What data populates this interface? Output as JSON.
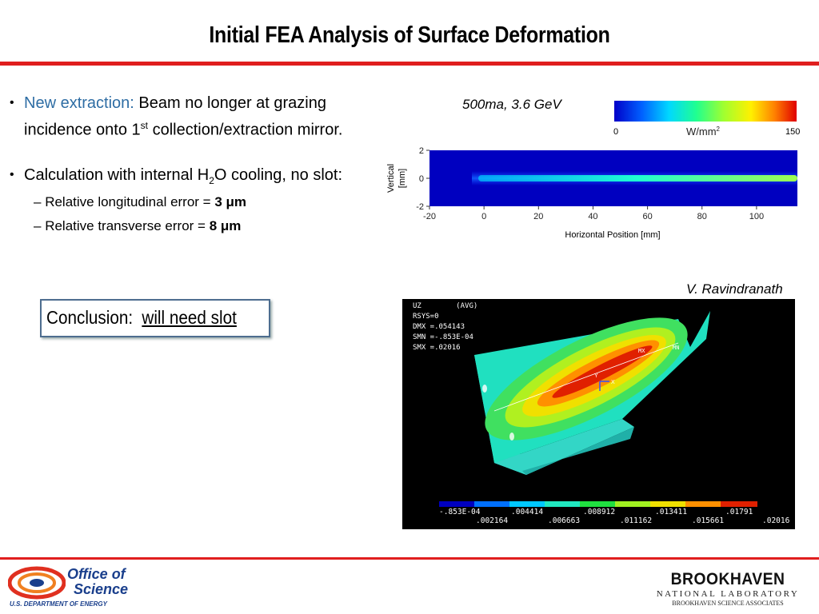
{
  "slide": {
    "title": "Initial FEA Analysis of Surface Deformation",
    "bullet1": {
      "prefix": "New extraction:",
      "text_a": "Beam no longer at grazing",
      "text_b": "incidence onto 1",
      "sup": "st",
      "text_c": "collection/extraction mirror."
    },
    "bullet2": {
      "text_a": "Calculation with internal H",
      "sub": "2",
      "text_b": "O cooling, no slot:",
      "sub1_label": "Relative longitudinal error = ",
      "sub1_value": "3 μm",
      "sub2_label": "Relative transverse error  = ",
      "sub2_value": "8 μm"
    },
    "conclusion_label": "Conclusion:",
    "conclusion_value": "will need slot",
    "beam_caption": "500ma, 3.6 GeV",
    "credit": "V. Ravindranath"
  },
  "colors": {
    "rule": "#e01e1e",
    "accent_blue": "#2e6da4",
    "box_border": "#4d6d8f"
  },
  "chart_data": {
    "type": "heatmap",
    "xlabel": "Horizontal Position [mm]",
    "ylabel_line1": "Vertical",
    "ylabel_line2": "[mm]",
    "x_ticks": [
      "-20",
      "0",
      "20",
      "40",
      "60",
      "80",
      "100"
    ],
    "y_ticks": [
      "2",
      "0",
      "-2"
    ],
    "xlim": [
      -20,
      115
    ],
    "ylim": [
      -2,
      2
    ],
    "colorbar": {
      "min": "0",
      "max": "150",
      "unit": "W/mm",
      "unit_sup": "2"
    }
  },
  "fea_plot": {
    "header": [
      "UZ        (AVG)",
      "RSYS=0",
      "DMX =.054143",
      "SMN =-.853E-04",
      "SMX =.02016"
    ],
    "scale_top": [
      "-.853E-04",
      ".004414",
      ".008912",
      ".013411",
      ".01791"
    ],
    "scale_bottom": [
      ".002164",
      ".006663",
      ".011162",
      ".015661",
      ".02016"
    ],
    "mx_label": "MX",
    "mn_label": "MN",
    "axis_x": "X",
    "axis_y": "Y"
  },
  "footer": {
    "left_line1": "Office of",
    "left_line2": "Science",
    "left_line3": "U.S. DEPARTMENT OF ENERGY",
    "right_line1": "BROOKHAVEN",
    "right_line2": "NATIONAL LABORATORY",
    "right_line3": "BROOKHAVEN SCIENCE ASSOCIATES"
  }
}
